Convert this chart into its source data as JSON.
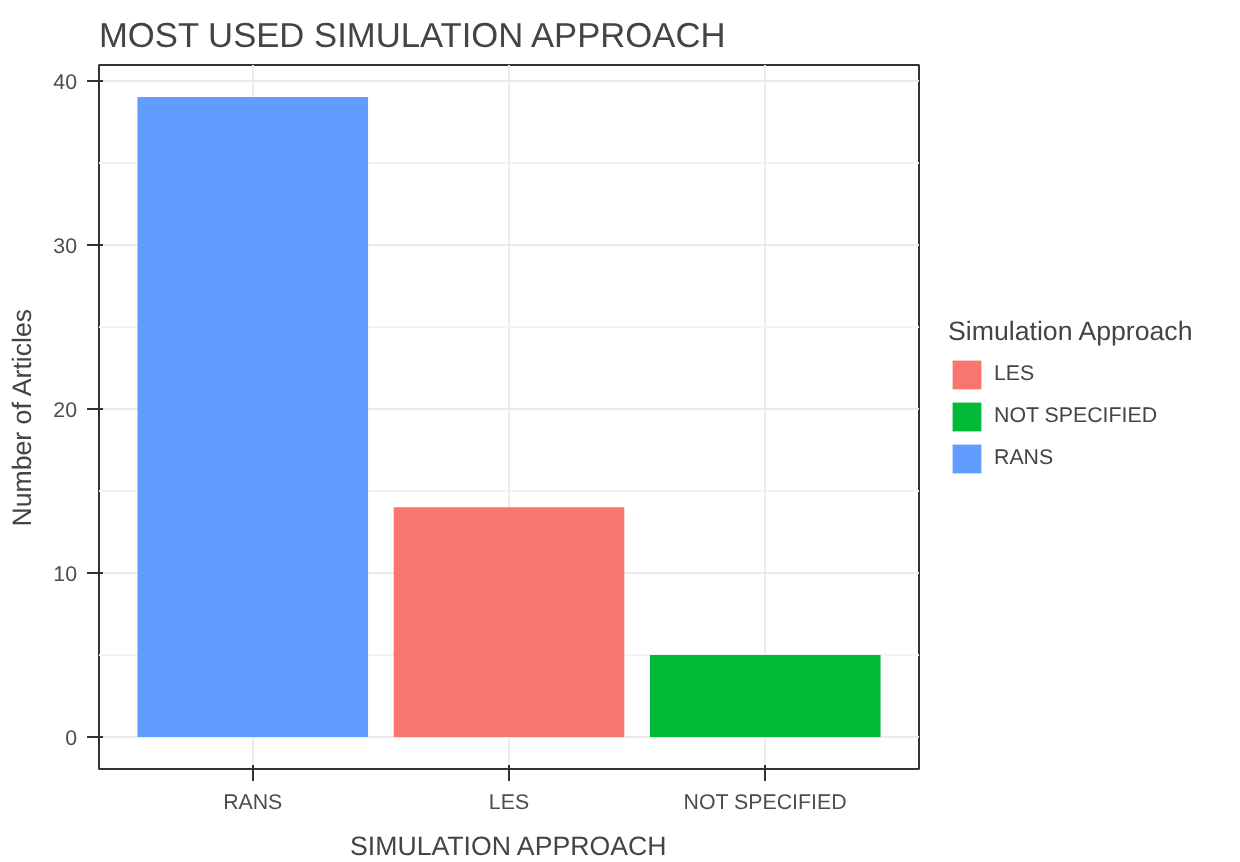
{
  "chart_data": {
    "type": "bar",
    "title": "MOST USED SIMULATION APPROACH",
    "xlabel": "SIMULATION APPROACH",
    "ylabel": "Number of Articles",
    "legend_title": "Simulation Approach",
    "categories": [
      "RANS",
      "LES",
      "NOT SPECIFIED"
    ],
    "series": [
      {
        "name": "LES",
        "color": "#f8766d",
        "values": [
          null,
          14,
          null
        ]
      },
      {
        "name": "NOT SPECIFIED",
        "color": "#00ba38",
        "values": [
          null,
          null,
          5
        ]
      },
      {
        "name": "RANS",
        "color": "#619cff",
        "values": [
          39,
          null,
          null
        ]
      }
    ],
    "ylim": [
      -1.95,
      40.95
    ],
    "yticks": [
      0,
      10,
      20,
      30,
      40
    ],
    "grid": true,
    "legend": "right"
  }
}
